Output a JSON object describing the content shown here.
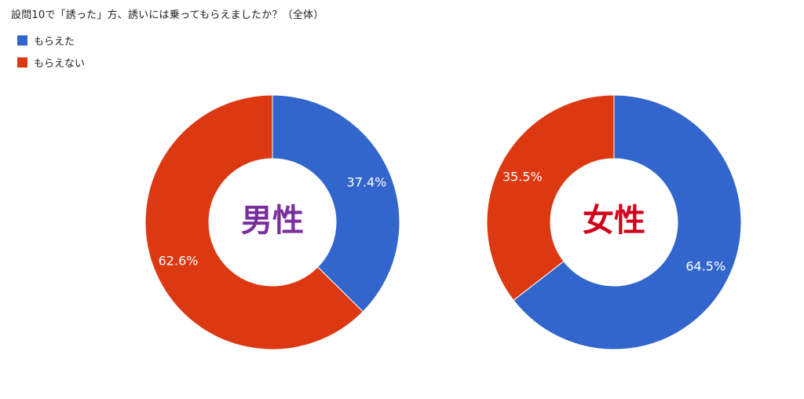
{
  "title": "設問10で「誘った」方、誘いには乗ってもらえましたか？（全体）",
  "legend": {
    "items": [
      {
        "label": "もらえた",
        "color": "#3366cc"
      },
      {
        "label": "もらえない",
        "color": "#dc3912"
      }
    ]
  },
  "chart_data": [
    {
      "type": "pie",
      "center_label": "男性",
      "center_label_color": "#7b2f9e",
      "slices": [
        {
          "name": "もらえた",
          "value": 37.4,
          "label": "37.4%",
          "color": "#3366cc"
        },
        {
          "name": "もらえない",
          "value": 62.6,
          "label": "62.6%",
          "color": "#dc3912"
        }
      ]
    },
    {
      "type": "pie",
      "center_label": "女性",
      "center_label_color": "#d0021b",
      "slices": [
        {
          "name": "もらえた",
          "value": 64.5,
          "label": "64.5%",
          "color": "#3366cc"
        },
        {
          "name": "もらえない",
          "value": 35.5,
          "label": "35.5%",
          "color": "#dc3912"
        }
      ]
    }
  ]
}
